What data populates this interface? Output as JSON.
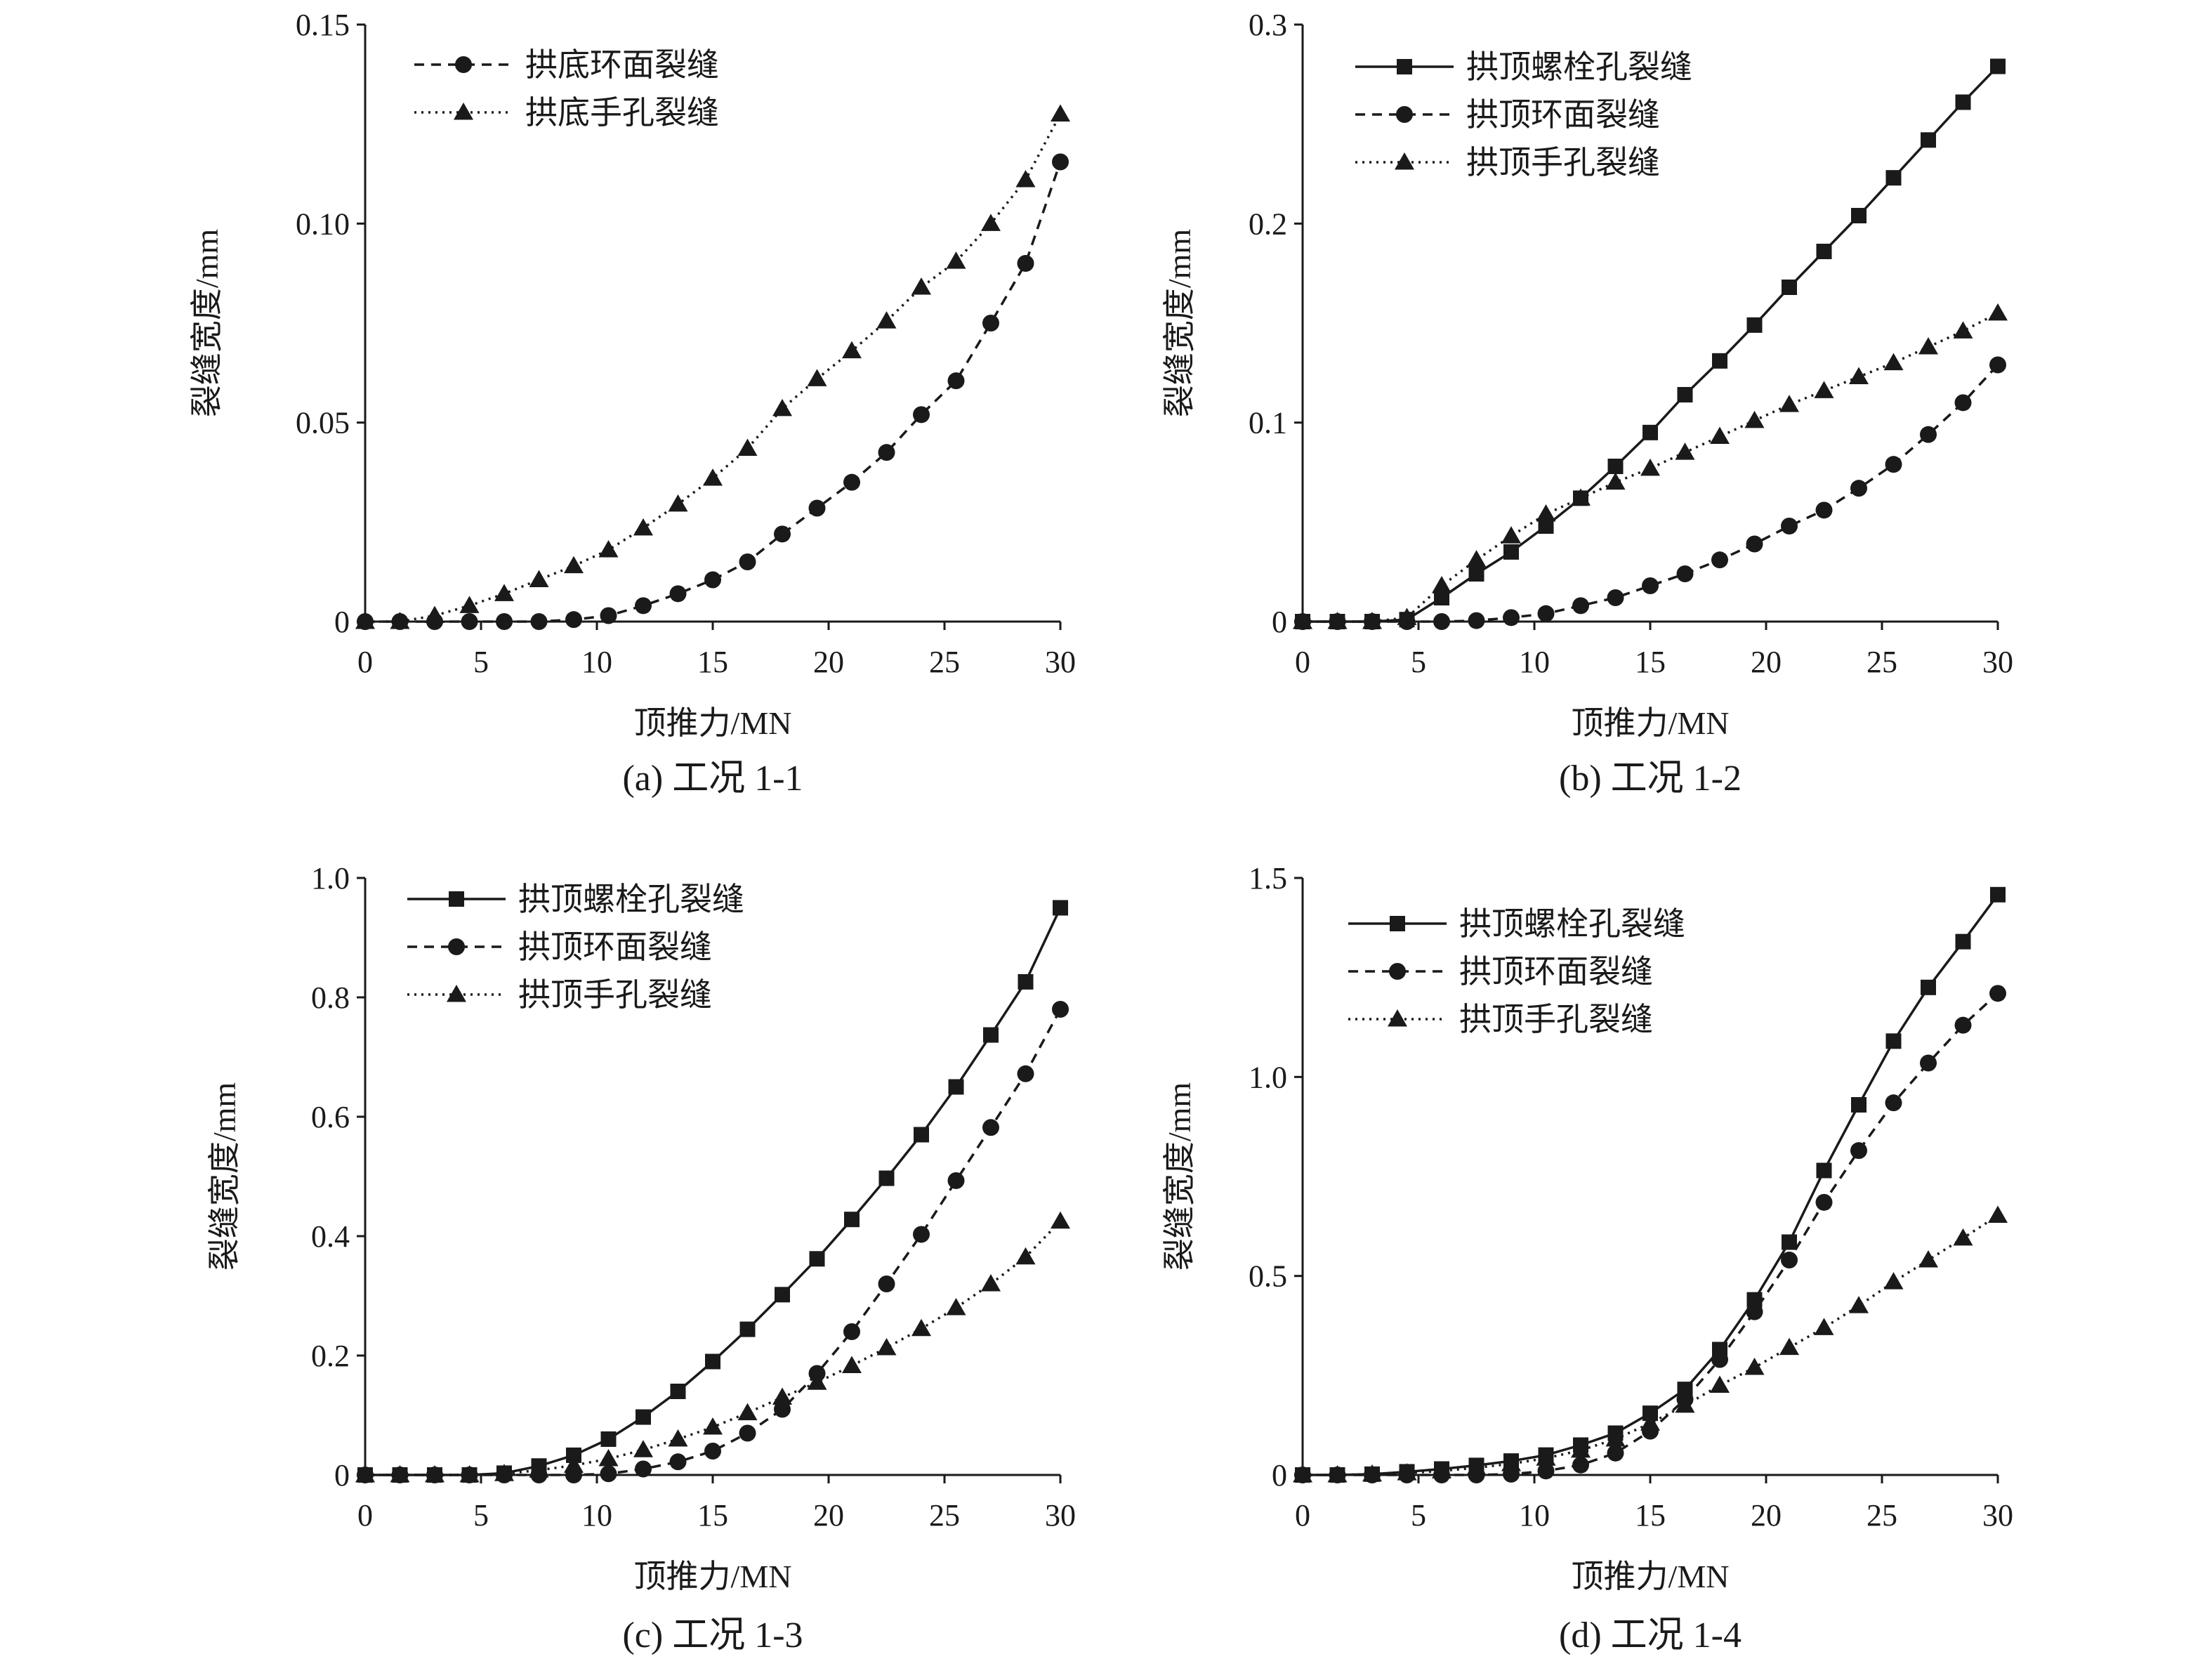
{
  "figure": {
    "background": "#ffffff",
    "line_color": "#1a1a1a"
  },
  "chart_data": [
    {
      "type": "line",
      "caption": "(a) 工况 1-1",
      "xlabel": "顶推力/MN",
      "ylabel": "裂缝宽度/mm",
      "xlim": [
        0,
        30
      ],
      "ylim": [
        0,
        0.15
      ],
      "xticks": [
        "0",
        "5",
        "10",
        "15",
        "20",
        "25",
        "30"
      ],
      "yticks": [
        "0",
        "0.05",
        "0.10",
        "0.15"
      ],
      "ytick_values": [
        0,
        0.05,
        0.1,
        0.15
      ],
      "grid": false,
      "legend_position": "top-left",
      "x": [
        0,
        1.5,
        3,
        4.5,
        6,
        7.5,
        9,
        10.5,
        12,
        13.5,
        15,
        16.5,
        18,
        19.5,
        21,
        22.5,
        24,
        25.5,
        27,
        28.5,
        30
      ],
      "series": [
        {
          "name": "拱底环面裂缝",
          "marker": "circle",
          "line": "dashed",
          "values": [
            0,
            0,
            0,
            0,
            0,
            0,
            0.0005,
            0.0015,
            0.004,
            0.007,
            0.0105,
            0.015,
            0.022,
            0.0285,
            0.035,
            0.0425,
            0.052,
            0.0605,
            0.075,
            0.09,
            0.1155
          ]
        },
        {
          "name": "拱底手孔裂缝",
          "marker": "triangle",
          "line": "dotted",
          "values": [
            0,
            0,
            0.0015,
            0.004,
            0.007,
            0.0105,
            0.014,
            0.018,
            0.0235,
            0.0295,
            0.036,
            0.0435,
            0.0535,
            0.061,
            0.068,
            0.0755,
            0.084,
            0.0905,
            0.1,
            0.111,
            0.1275
          ]
        }
      ]
    },
    {
      "type": "line",
      "caption": "(b) 工况 1-2",
      "xlabel": "顶推力/MN",
      "ylabel": "裂缝宽度/mm",
      "xlim": [
        0,
        30
      ],
      "ylim": [
        0,
        0.3
      ],
      "xticks": [
        "0",
        "5",
        "10",
        "15",
        "20",
        "25",
        "30"
      ],
      "yticks": [
        "0",
        "0.1",
        "0.2",
        "0.3"
      ],
      "ytick_values": [
        0,
        0.1,
        0.2,
        0.3
      ],
      "grid": false,
      "legend_position": "top-left",
      "x": [
        0,
        1.5,
        3,
        4.5,
        6,
        7.5,
        9,
        10.5,
        12,
        13.5,
        15,
        16.5,
        18,
        19.5,
        21,
        22.5,
        24,
        25.5,
        27,
        28.5,
        30
      ],
      "series": [
        {
          "name": "拱顶螺栓孔裂缝",
          "marker": "square",
          "line": "solid",
          "values": [
            0,
            0,
            0,
            0.001,
            0.012,
            0.024,
            0.035,
            0.048,
            0.062,
            0.078,
            0.095,
            0.114,
            0.131,
            0.149,
            0.168,
            0.186,
            0.204,
            0.223,
            0.242,
            0.261,
            0.279
          ]
        },
        {
          "name": "拱顶环面裂缝",
          "marker": "circle",
          "line": "dashed",
          "values": [
            0,
            0,
            0,
            0,
            0,
            0.0005,
            0.002,
            0.004,
            0.008,
            0.012,
            0.018,
            0.024,
            0.031,
            0.039,
            0.048,
            0.056,
            0.067,
            0.079,
            0.094,
            0.11,
            0.129
          ]
        },
        {
          "name": "拱顶手孔裂缝",
          "marker": "triangle",
          "line": "dotted",
          "values": [
            0,
            0,
            0,
            0.002,
            0.018,
            0.031,
            0.043,
            0.054,
            0.062,
            0.07,
            0.077,
            0.085,
            0.093,
            0.101,
            0.109,
            0.116,
            0.123,
            0.13,
            0.138,
            0.146,
            0.155
          ]
        }
      ]
    },
    {
      "type": "line",
      "caption": "(c) 工况 1-3",
      "xlabel": "顶推力/MN",
      "ylabel": "裂缝宽度/mm",
      "xlim": [
        0,
        30
      ],
      "ylim": [
        0,
        1.0
      ],
      "xticks": [
        "0",
        "5",
        "10",
        "15",
        "20",
        "25",
        "30"
      ],
      "yticks": [
        "0",
        "0.2",
        "0.4",
        "0.6",
        "0.8",
        "1.0"
      ],
      "ytick_values": [
        0,
        0.2,
        0.4,
        0.6,
        0.8,
        1.0
      ],
      "grid": false,
      "legend_position": "top-left",
      "x": [
        0,
        1.5,
        3,
        4.5,
        6,
        7.5,
        9,
        10.5,
        12,
        13.5,
        15,
        16.5,
        18,
        19.5,
        21,
        22.5,
        24,
        25.5,
        27,
        28.5,
        30
      ],
      "series": [
        {
          "name": "拱顶螺栓孔裂缝",
          "marker": "square",
          "line": "solid",
          "values": [
            0,
            0,
            0,
            0,
            0.003,
            0.015,
            0.033,
            0.06,
            0.097,
            0.14,
            0.19,
            0.244,
            0.302,
            0.362,
            0.428,
            0.497,
            0.57,
            0.65,
            0.737,
            0.826,
            0.95
          ]
        },
        {
          "name": "拱顶环面裂缝",
          "marker": "circle",
          "line": "dashed",
          "values": [
            0,
            0,
            0,
            0,
            0,
            0,
            0,
            0.002,
            0.01,
            0.022,
            0.04,
            0.07,
            0.11,
            0.17,
            0.24,
            0.32,
            0.403,
            0.493,
            0.582,
            0.672,
            0.78
          ]
        },
        {
          "name": "拱顶手孔裂缝",
          "marker": "triangle",
          "line": "dotted",
          "values": [
            0,
            0,
            0,
            0,
            0.002,
            0.008,
            0.016,
            0.027,
            0.042,
            0.06,
            0.08,
            0.104,
            0.13,
            0.155,
            0.183,
            0.213,
            0.245,
            0.28,
            0.32,
            0.365,
            0.425
          ]
        }
      ]
    },
    {
      "type": "line",
      "caption": "(d) 工况 1-4",
      "xlabel": "顶推力/MN",
      "ylabel": "裂缝宽度/mm",
      "xlim": [
        0,
        30
      ],
      "ylim": [
        0,
        1.5
      ],
      "xticks": [
        "0",
        "5",
        "10",
        "15",
        "20",
        "25",
        "30"
      ],
      "yticks": [
        "0",
        "0.5",
        "1.0",
        "1.5"
      ],
      "ytick_values": [
        0,
        0.5,
        1.0,
        1.5
      ],
      "grid": false,
      "legend_position": "top-left",
      "x": [
        0,
        1.5,
        3,
        4.5,
        6,
        7.5,
        9,
        10.5,
        12,
        13.5,
        15,
        16.5,
        18,
        19.5,
        21,
        22.5,
        24,
        25.5,
        27,
        28.5,
        30
      ],
      "series": [
        {
          "name": "拱顶螺栓孔裂缝",
          "marker": "square",
          "line": "solid",
          "values": [
            0,
            0,
            0.002,
            0.008,
            0.015,
            0.024,
            0.035,
            0.05,
            0.075,
            0.105,
            0.155,
            0.215,
            0.315,
            0.44,
            0.585,
            0.765,
            0.93,
            1.09,
            1.225,
            1.34,
            1.458
          ]
        },
        {
          "name": "拱顶环面裂缝",
          "marker": "circle",
          "line": "dashed",
          "values": [
            0,
            0,
            0,
            0,
            0,
            0,
            0.002,
            0.01,
            0.025,
            0.055,
            0.11,
            0.19,
            0.29,
            0.41,
            0.54,
            0.685,
            0.815,
            0.935,
            1.035,
            1.13,
            1.21
          ]
        },
        {
          "name": "拱顶手孔裂缝",
          "marker": "triangle",
          "line": "dotted",
          "values": [
            0,
            0,
            0.002,
            0.005,
            0.01,
            0.018,
            0.028,
            0.042,
            0.062,
            0.09,
            0.13,
            0.175,
            0.225,
            0.27,
            0.32,
            0.37,
            0.425,
            0.485,
            0.54,
            0.595,
            0.652
          ]
        }
      ]
    }
  ]
}
